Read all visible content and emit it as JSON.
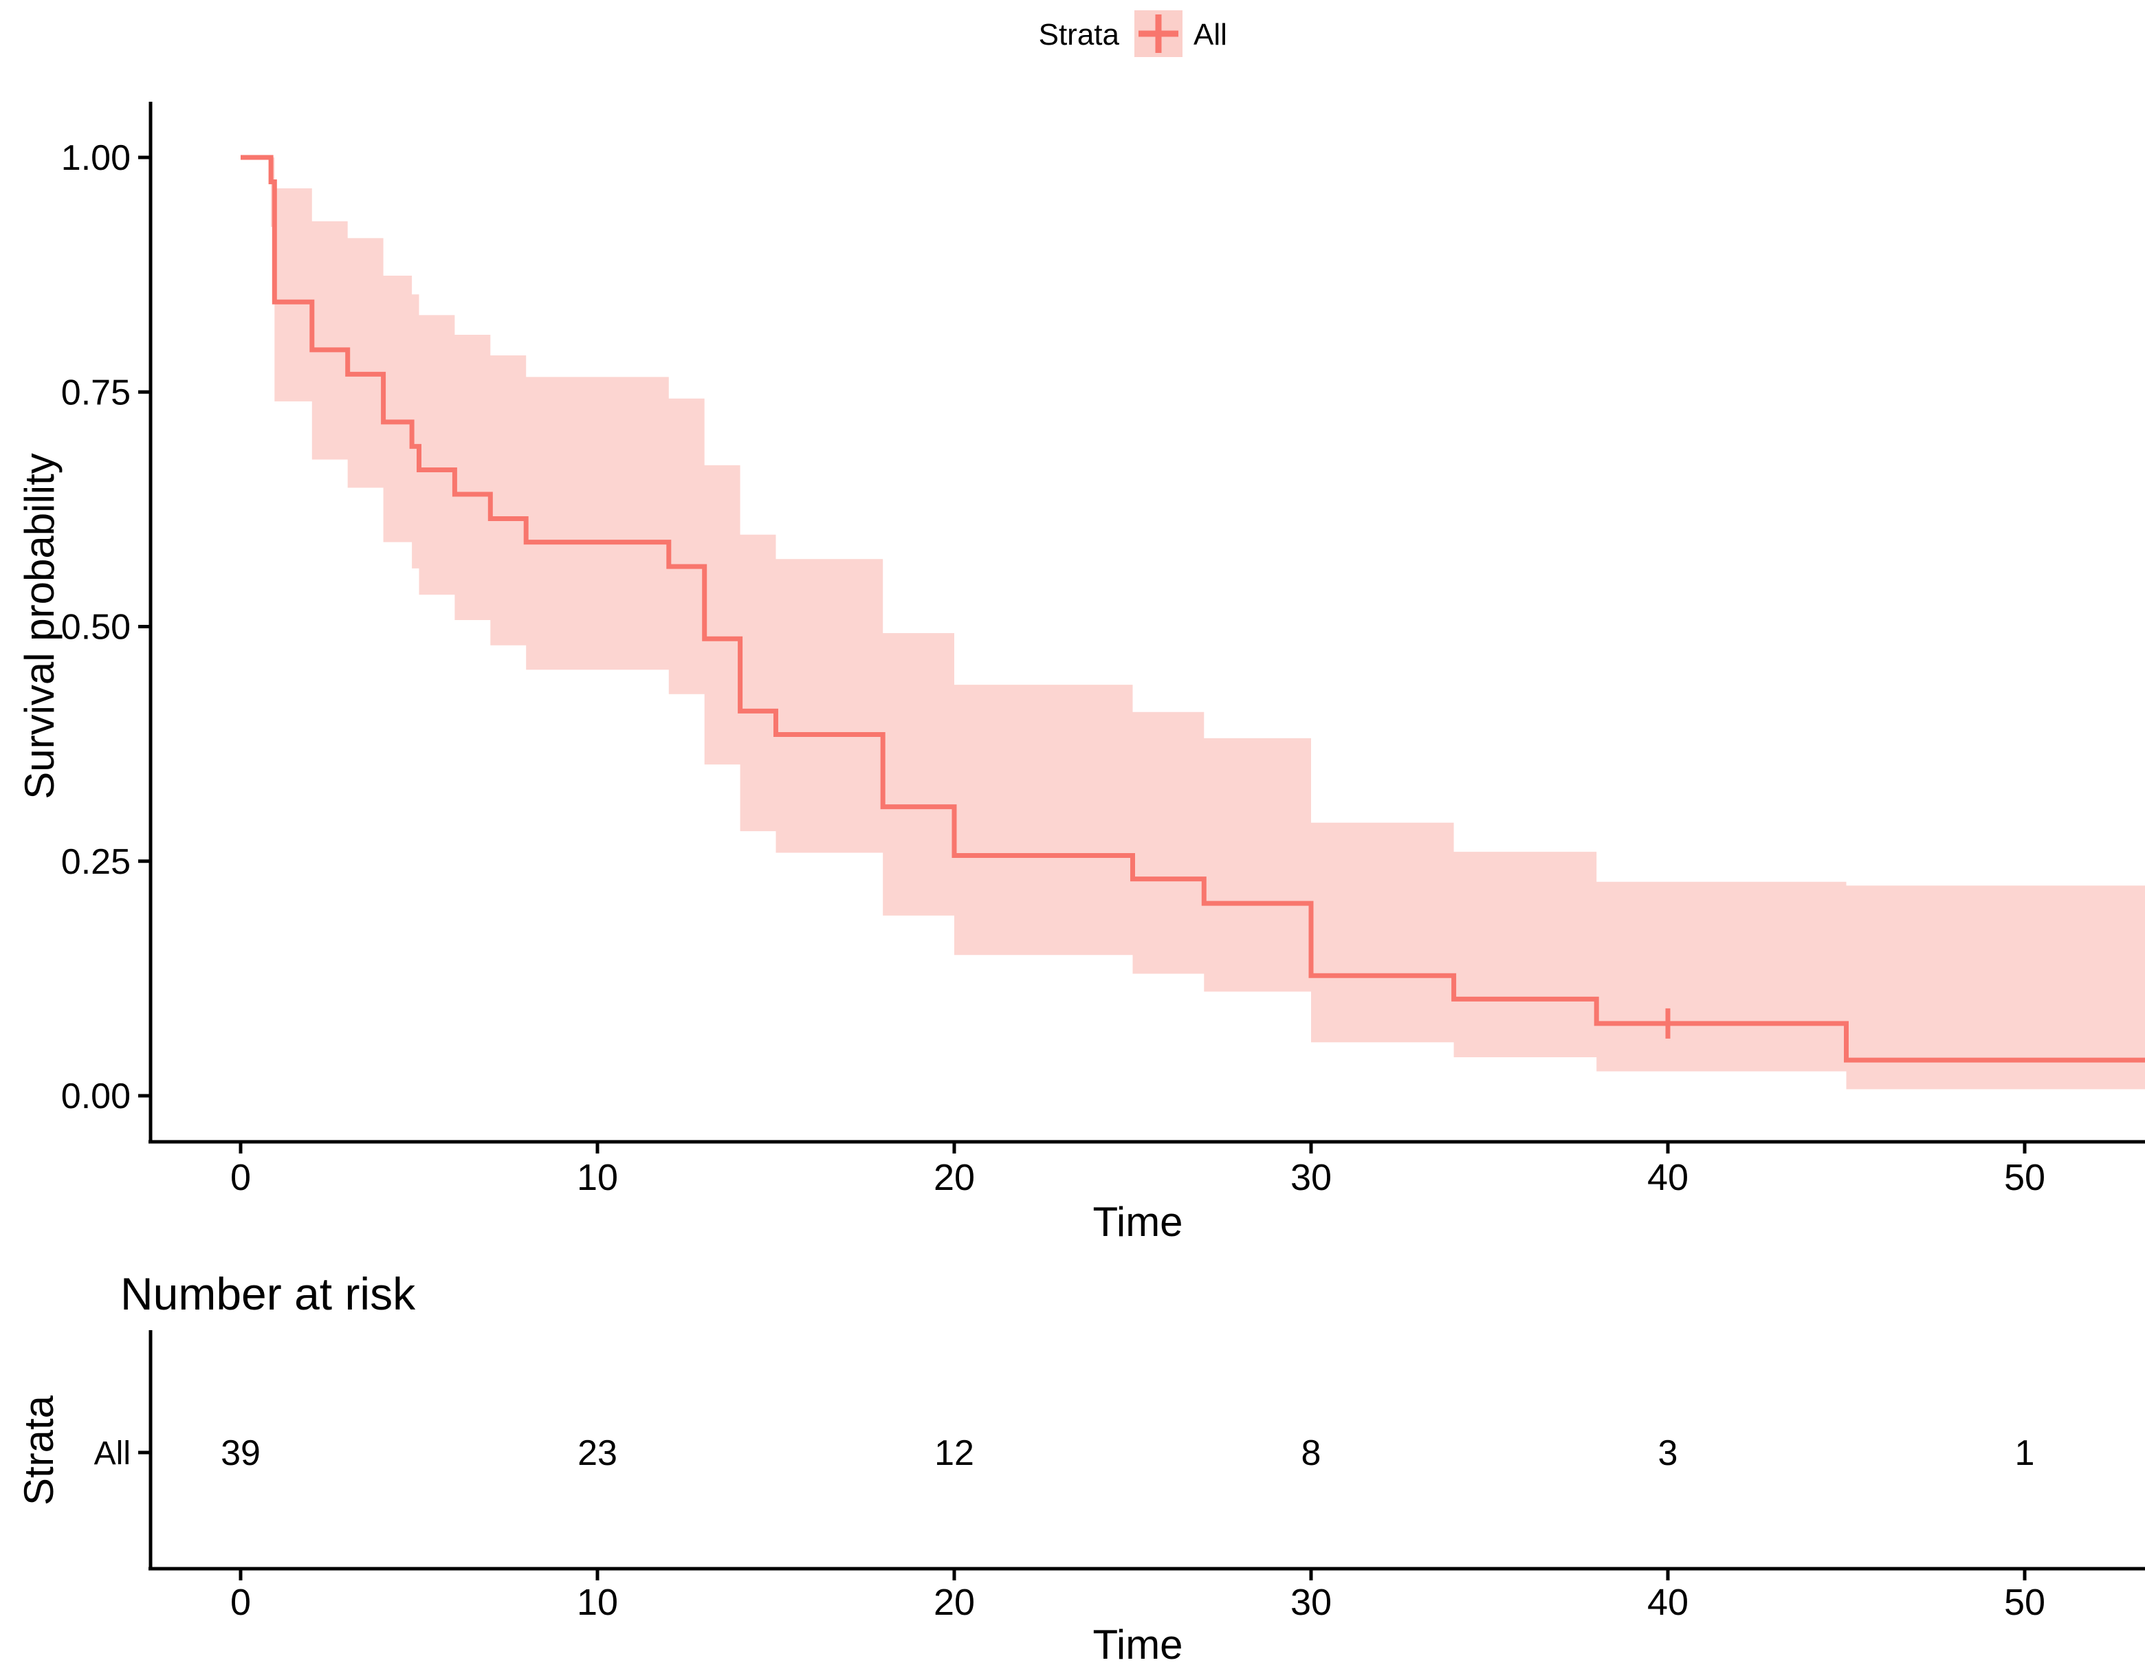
{
  "page": {
    "background": "#FFFFFF"
  },
  "colors": {
    "line": "#F8766D",
    "ribbon": "#FCD5D1",
    "legend_key_fill": "#FBCFCA",
    "text": "#000000",
    "axis": "#000000",
    "risk_row_label": "#F8766D"
  },
  "legend": {
    "title": "Strata",
    "item_label": "All"
  },
  "main_plot": {
    "y_axis_title": "Survival probability",
    "x_axis_title": "Time",
    "y_tick_labels": [
      "1.00",
      "0.75",
      "0.50",
      "0.25",
      "0.00"
    ],
    "y_tick_values": [
      1,
      0.75,
      0.5,
      0.25,
      0
    ],
    "x_tick_labels": [
      "0",
      "10",
      "20",
      "30",
      "40",
      "50"
    ],
    "x_tick_values": [
      0,
      10,
      20,
      30,
      40,
      50
    ]
  },
  "risk_table": {
    "title": "Number at risk",
    "axis_label": "Strata",
    "row_label": "All",
    "counts": [
      "39",
      "23",
      "12",
      "8",
      "3",
      "1"
    ],
    "x_tick_labels": [
      "0",
      "10",
      "20",
      "30",
      "40",
      "50"
    ],
    "x_tick_values": [
      0,
      10,
      20,
      30,
      40,
      50
    ],
    "x_axis_title": "Time"
  },
  "chart_data": {
    "type": "line",
    "subtype": "kaplan-meier-step",
    "title": "",
    "xlabel": "Time",
    "ylabel": "Survival probability",
    "xlim": [
      0,
      53.4
    ],
    "ylim": [
      0,
      1
    ],
    "grid": false,
    "legend_position": "top",
    "series": [
      {
        "name": "All",
        "color": "#F8766D",
        "steps": [
          [
            0,
            1.0
          ],
          [
            0.85,
            0.974
          ],
          [
            0.95,
            0.846
          ],
          [
            2,
            0.795
          ],
          [
            3,
            0.769
          ],
          [
            4,
            0.718
          ],
          [
            4.8,
            0.692
          ],
          [
            5,
            0.667
          ],
          [
            6,
            0.641
          ],
          [
            7,
            0.615
          ],
          [
            8,
            0.59
          ],
          [
            12,
            0.564
          ],
          [
            13,
            0.487
          ],
          [
            14,
            0.41
          ],
          [
            15,
            0.385
          ],
          [
            18,
            0.308
          ],
          [
            20,
            0.256
          ],
          [
            25,
            0.231
          ],
          [
            27,
            0.205
          ],
          [
            30,
            0.128
          ],
          [
            34,
            0.103
          ],
          [
            38,
            0.077
          ],
          [
            45,
            0.038
          ]
        ],
        "confidence_band": [
          [
            0.85,
            1.0,
            0.926
          ],
          [
            0.95,
            0.967,
            0.74
          ],
          [
            2,
            0.932,
            0.678
          ],
          [
            3,
            0.914,
            0.648
          ],
          [
            4,
            0.874,
            0.59
          ],
          [
            4.8,
            0.854,
            0.562
          ],
          [
            5,
            0.832,
            0.534
          ],
          [
            6,
            0.811,
            0.507
          ],
          [
            7,
            0.789,
            0.48
          ],
          [
            8,
            0.766,
            0.454
          ],
          [
            12,
            0.743,
            0.428
          ],
          [
            13,
            0.672,
            0.353
          ],
          [
            14,
            0.598,
            0.282
          ],
          [
            15,
            0.572,
            0.259
          ],
          [
            18,
            0.493,
            0.192
          ],
          [
            20,
            0.438,
            0.15
          ],
          [
            25,
            0.409,
            0.13
          ],
          [
            27,
            0.381,
            0.111
          ],
          [
            30,
            0.291,
            0.057
          ],
          [
            34,
            0.26,
            0.041
          ],
          [
            38,
            0.228,
            0.026
          ],
          [
            45,
            0.224,
            0.007
          ]
        ],
        "censored": [
          [
            40,
            0.077
          ]
        ]
      }
    ],
    "number_at_risk": {
      "strata": "All",
      "times": [
        0,
        10,
        20,
        30,
        40,
        50
      ],
      "counts": [
        39,
        23,
        12,
        8,
        3,
        1
      ]
    }
  }
}
